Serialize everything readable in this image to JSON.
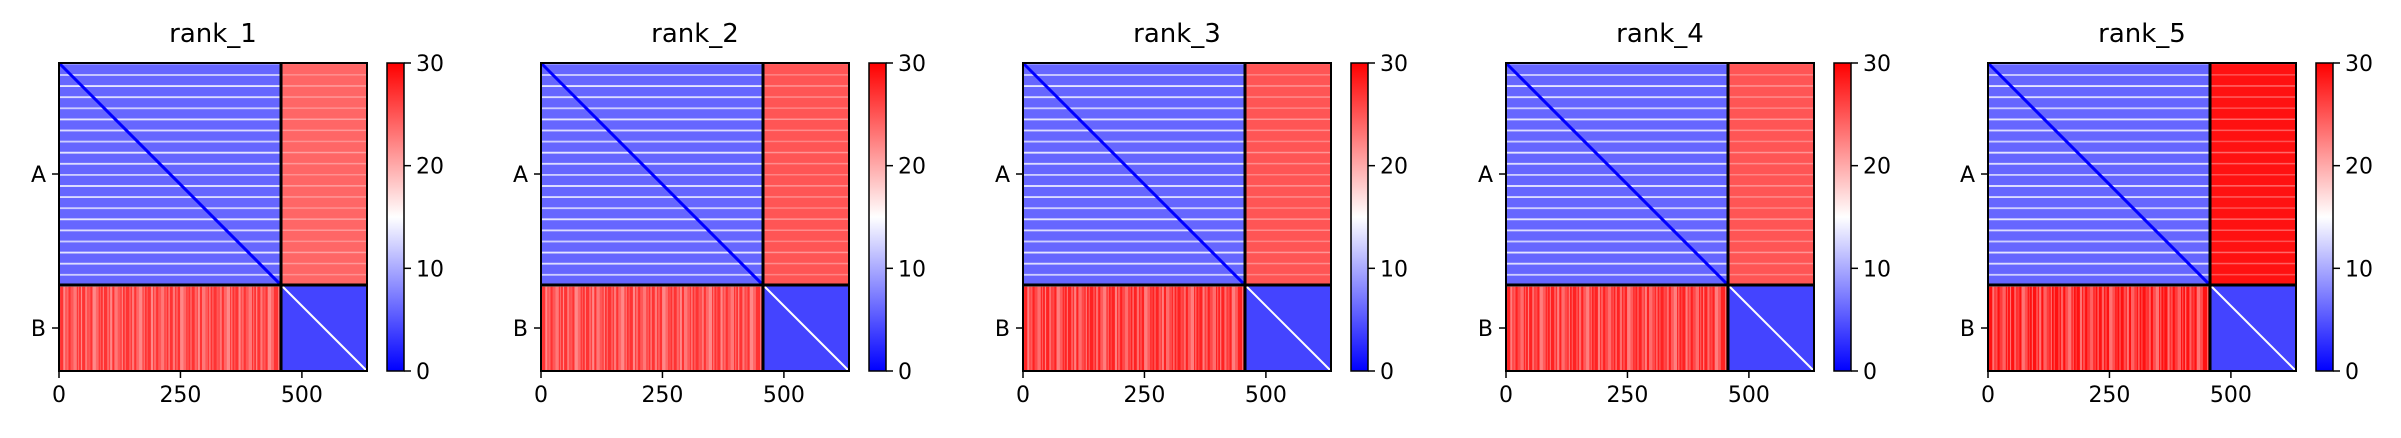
{
  "colors": {
    "cmap_low": "#0000ff",
    "cmap_mid": "#ffffff",
    "cmap_high": "#ff0000",
    "frame": "#000000",
    "boundary": "#000000"
  },
  "chart_data": [
    {
      "type": "heatmap",
      "title": "rank_1",
      "chains": [
        {
          "label": "A",
          "length": 457
        },
        {
          "label": "B",
          "length": 177
        }
      ],
      "x": {
        "lim": [
          0,
          634
        ],
        "ticks": [
          0,
          250,
          500
        ],
        "tick_labels": [
          "0",
          "250",
          "500"
        ]
      },
      "y": {
        "tick_labels": [
          "A",
          "B"
        ]
      },
      "colorbar": {
        "lim": [
          0,
          30
        ],
        "ticks": [
          0,
          10,
          20,
          30
        ],
        "tick_labels": [
          "0",
          "10",
          "20",
          "30"
        ]
      },
      "blocks": {
        "AA": 6,
        "AB": 24,
        "BA": 27,
        "BB": 4
      }
    },
    {
      "type": "heatmap",
      "title": "rank_2",
      "chains": [
        {
          "label": "A",
          "length": 457
        },
        {
          "label": "B",
          "length": 177
        }
      ],
      "x": {
        "lim": [
          0,
          634
        ],
        "ticks": [
          0,
          250,
          500
        ],
        "tick_labels": [
          "0",
          "250",
          "500"
        ]
      },
      "y": {
        "tick_labels": [
          "A",
          "B"
        ]
      },
      "colorbar": {
        "lim": [
          0,
          30
        ],
        "ticks": [
          0,
          10,
          20,
          30
        ],
        "tick_labels": [
          "0",
          "10",
          "20",
          "30"
        ]
      },
      "blocks": {
        "AA": 6,
        "AB": 25,
        "BA": 27,
        "BB": 4
      }
    },
    {
      "type": "heatmap",
      "title": "rank_3",
      "chains": [
        {
          "label": "A",
          "length": 457
        },
        {
          "label": "B",
          "length": 177
        }
      ],
      "x": {
        "lim": [
          0,
          634
        ],
        "ticks": [
          0,
          250,
          500
        ],
        "tick_labels": [
          "0",
          "250",
          "500"
        ]
      },
      "y": {
        "tick_labels": [
          "A",
          "B"
        ]
      },
      "colorbar": {
        "lim": [
          0,
          30
        ],
        "ticks": [
          0,
          10,
          20,
          30
        ],
        "tick_labels": [
          "0",
          "10",
          "20",
          "30"
        ]
      },
      "blocks": {
        "AA": 6,
        "AB": 25,
        "BA": 28,
        "BB": 4
      }
    },
    {
      "type": "heatmap",
      "title": "rank_4",
      "chains": [
        {
          "label": "A",
          "length": 457
        },
        {
          "label": "B",
          "length": 177
        }
      ],
      "x": {
        "lim": [
          0,
          634
        ],
        "ticks": [
          0,
          250,
          500
        ],
        "tick_labels": [
          "0",
          "250",
          "500"
        ]
      },
      "y": {
        "tick_labels": [
          "A",
          "B"
        ]
      },
      "colorbar": {
        "lim": [
          0,
          30
        ],
        "ticks": [
          0,
          10,
          20,
          30
        ],
        "tick_labels": [
          "0",
          "10",
          "20",
          "30"
        ]
      },
      "blocks": {
        "AA": 6,
        "AB": 25,
        "BA": 28,
        "BB": 4
      }
    },
    {
      "type": "heatmap",
      "title": "rank_5",
      "chains": [
        {
          "label": "A",
          "length": 457
        },
        {
          "label": "B",
          "length": 177
        }
      ],
      "x": {
        "lim": [
          0,
          634
        ],
        "ticks": [
          0,
          250,
          500
        ],
        "tick_labels": [
          "0",
          "250",
          "500"
        ]
      },
      "y": {
        "tick_labels": [
          "A",
          "B"
        ]
      },
      "colorbar": {
        "lim": [
          0,
          30
        ],
        "ticks": [
          0,
          10,
          20,
          30
        ],
        "tick_labels": [
          "0",
          "10",
          "20",
          "30"
        ]
      },
      "blocks": {
        "AA": 6,
        "AB": 29,
        "BA": 29,
        "BB": 4
      }
    }
  ]
}
